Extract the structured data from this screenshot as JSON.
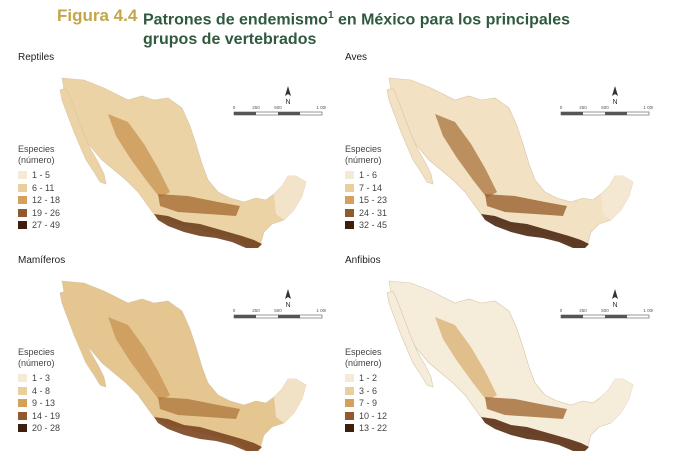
{
  "figure": {
    "label": "Figura 4.4",
    "title": "Patrones de endemismo",
    "footnote_mark": "1",
    "title_rest": " en México para los principales grupos de vertebrados"
  },
  "scale": {
    "north": "N",
    "ticks": [
      "0",
      "250",
      "500",
      "1 000"
    ]
  },
  "panels": [
    {
      "name": "Reptiles",
      "legend_title_1": "Especies",
      "legend_title_2": "(número)",
      "classes": [
        {
          "label": "1 - 5",
          "color": "#f4ead6"
        },
        {
          "label": "6 - 11",
          "color": "#e8cf9d"
        },
        {
          "label": "12 - 18",
          "color": "#d3a15a"
        },
        {
          "label": "19 - 26",
          "color": "#8f5a2f"
        },
        {
          "label": "27 - 49",
          "color": "#3e1f0d"
        }
      ]
    },
    {
      "name": "Aves",
      "legend_title_1": "Especies",
      "legend_title_2": "(número)",
      "classes": [
        {
          "label": "1 - 6",
          "color": "#f4ead6"
        },
        {
          "label": "7 - 14",
          "color": "#e8cf9d"
        },
        {
          "label": "15 - 23",
          "color": "#d3a15a"
        },
        {
          "label": "24 - 31",
          "color": "#8f5a2f"
        },
        {
          "label": "32 - 45",
          "color": "#3e1f0d"
        }
      ]
    },
    {
      "name": "Mamíferos",
      "legend_title_1": "Especies",
      "legend_title_2": "(número)",
      "classes": [
        {
          "label": "1 - 3",
          "color": "#f4ead6"
        },
        {
          "label": "4 - 8",
          "color": "#e8cf9d"
        },
        {
          "label": "9 - 13",
          "color": "#d3a15a"
        },
        {
          "label": "14 - 19",
          "color": "#8f5a2f"
        },
        {
          "label": "20 - 28",
          "color": "#3e1f0d"
        }
      ]
    },
    {
      "name": "Anfibios",
      "legend_title_1": "Especies",
      "legend_title_2": "(número)",
      "classes": [
        {
          "label": "1 - 2",
          "color": "#f4ead6"
        },
        {
          "label": "3 - 6",
          "color": "#e8cf9d"
        },
        {
          "label": "7 - 9",
          "color": "#d3a15a"
        },
        {
          "label": "10 - 12",
          "color": "#8f5a2f"
        },
        {
          "label": "13 - 22",
          "color": "#3e1f0d"
        }
      ]
    }
  ]
}
